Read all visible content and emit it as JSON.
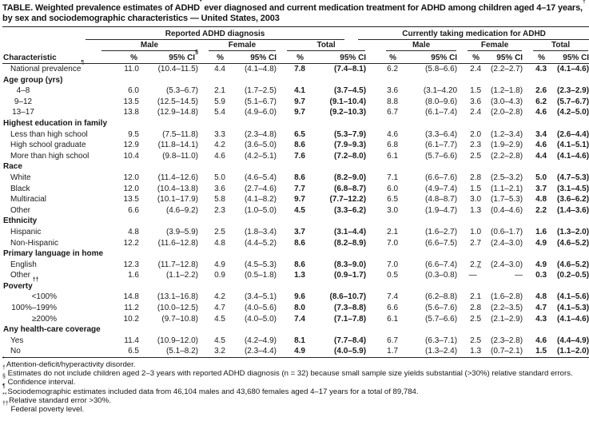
{
  "page": {
    "background": "#ffffff",
    "text_color": "#1b1b1b",
    "rule_color": "#262626"
  },
  "title": {
    "segments": [
      {
        "t": "TABLE. Weighted prevalence estimates of ADHD"
      },
      {
        "s": "*"
      },
      {
        "t": " ever diagnosed and current medication treatment for ADHD among children aged 4–17 years,"
      },
      {
        "s": "†"
      },
      {
        "t": " by sex and sociodemographic characteristics — United States, 2003"
      }
    ]
  },
  "table": {
    "group_headers": [
      {
        "label": "Reported ADHD diagnosis"
      },
      {
        "label": "Currently taking medication for ADHD"
      }
    ],
    "sex_headers": [
      "Male",
      "Female",
      "Total",
      "Male",
      "Female",
      "Total"
    ],
    "characteristic_label": "Characteristic",
    "pct_label": "%",
    "ci_label": "95% CI",
    "ci_sup": "§",
    "rows": [
      {
        "type": "data",
        "label": "National prevalence",
        "label_sup": "¶",
        "values": [
          "11.0",
          "(10.4–11.5)",
          "4.4",
          "(4.1–4.8)",
          "7.8",
          "(7.4–8.1)",
          "6.2",
          "(5.8–6.6)",
          "2.4",
          "(2.2–2.7)",
          "4.3",
          "(4.1–4.6)"
        ]
      },
      {
        "type": "section",
        "label": "Age group (yrs)"
      },
      {
        "type": "data",
        "label": "4–8",
        "label_align": "center",
        "values": [
          "6.0",
          "(5.3–6.7)",
          "2.1",
          "(1.7–2.5)",
          "4.1",
          "(3.7–4.5)",
          "3.6",
          "(3.1–4.20",
          "1.5",
          "(1.2–1.8)",
          "2.6",
          "(2.3–2.9)"
        ]
      },
      {
        "type": "data",
        "label": "9–12",
        "label_align": "center",
        "values": [
          "13.5",
          "(12.5–14.5)",
          "5.9",
          "(5.1–6.7)",
          "9.7",
          "(9.1–10.4)",
          "8.8",
          "(8.0–9.6)",
          "3.6",
          "(3.0–4.3)",
          "6.2",
          "(5.7–6.7)"
        ]
      },
      {
        "type": "data",
        "label": "13–17",
        "label_align": "center",
        "values": [
          "13.8",
          "(12.9–14.8)",
          "5.4",
          "(4.9–6.0)",
          "9.7",
          "(9.2–10.3)",
          "6.7",
          "(6.1–7.4)",
          "2.4",
          "(2.0–2.8)",
          "4.6",
          "(4.2–5.0)"
        ]
      },
      {
        "type": "section",
        "label": "Highest education in family"
      },
      {
        "type": "data",
        "label": "Less than high school",
        "values": [
          "9.5",
          "(7.5–11.8)",
          "3.3",
          "(2.3–4.8)",
          "6.5",
          "(5.3–7.9)",
          "4.6",
          "(3.3–6.4)",
          "2.0",
          "(1.2–3.4)",
          "3.4",
          "(2.6–4.4)"
        ]
      },
      {
        "type": "data",
        "label": "High school graduate",
        "values": [
          "12.9",
          "(11.8–14.1)",
          "4.2",
          "(3.6–5.0)",
          "8.6",
          "(7.9–9.3)",
          "6.8",
          "(6.1–7.7)",
          "2.3",
          "(1.9–2.9)",
          "4.6",
          "(4.1–5.1)"
        ]
      },
      {
        "type": "data",
        "label": "More than high school",
        "values": [
          "10.4",
          "(9.8–11.0)",
          "4.6",
          "(4.2–5.1)",
          "7.6",
          "(7.2–8.0)",
          "6.1",
          "(5.7–6.6)",
          "2.5",
          "(2.2–2.8)",
          "4.4",
          "(4.1–4.6)"
        ]
      },
      {
        "type": "section",
        "label": "Race"
      },
      {
        "type": "data",
        "label": "White",
        "values": [
          "12.0",
          "(11.4–12.6)",
          "5.0",
          "(4.6–5.4)",
          "8.6",
          "(8.2–9.0)",
          "7.1",
          "(6.6–7.6)",
          "2.8",
          "(2.5–3.2)",
          "5.0",
          "(4.7–5.3)"
        ]
      },
      {
        "type": "data",
        "label": "Black",
        "values": [
          "12.0",
          "(10.4–13.8)",
          "3.6",
          "(2.7–4.6)",
          "7.7",
          "(6.8–8.7)",
          "6.0",
          "(4.9–7.4)",
          "1.5",
          "(1.1–2.1)",
          "3.7",
          "(3.1–4.5)"
        ]
      },
      {
        "type": "data",
        "label": "Multiracial",
        "values": [
          "13.5",
          "(10.1–17.9)",
          "5.8",
          "(4.1–8.2)",
          "9.7",
          "(7.7–12.2)",
          "6.5",
          "(4.8–8.7)",
          "3.0",
          "(1.7–5.3)",
          "4.8",
          "(3.6–6.2)"
        ]
      },
      {
        "type": "data",
        "label": "Other",
        "values": [
          "6.6",
          "(4.6–9.2)",
          "2.3",
          "(1.0–5.0)",
          "4.5",
          "(3.3–6.2)",
          "3.0",
          "(1.9–4.7)",
          "1.3",
          "(0.4–4.6)",
          "2.2",
          "(1.4–3.6)"
        ]
      },
      {
        "type": "section",
        "label": "Ethnicity"
      },
      {
        "type": "data",
        "label": "Hispanic",
        "values": [
          "4.8",
          "(3.9–5.9)",
          "2.5",
          "(1.8–3.4)",
          "3.7",
          "(3.1–4.4)",
          "2.1",
          "(1.6–2.7)",
          "1.0",
          "(0.6–1.7)",
          "1.6",
          "(1.3–2.0)"
        ]
      },
      {
        "type": "data",
        "label": "Non-Hispanic",
        "values": [
          "12.2",
          "(11.6–12.8)",
          "4.8",
          "(4.4–5.2)",
          "8.6",
          "(8.2–8.9)",
          "7.0",
          "(6.6–7.5)",
          "2.7",
          "(2.4–3.0)",
          "4.9",
          "(4.6–5.2)"
        ]
      },
      {
        "type": "section",
        "label": "Primary language in home"
      },
      {
        "type": "data",
        "label": "English",
        "values": [
          "12.3",
          "(11.7–12.8)",
          "4.9",
          "(4.5–5.3)",
          "8.6",
          "(8.3–9.0)",
          "7.0",
          "(6.6–7.4)",
          "2.7",
          "(2.4–3.0)",
          "4.9",
          "(4.6–5.2)"
        ]
      },
      {
        "type": "data",
        "label": "Other",
        "values": [
          "1.6",
          "(1.1–2.2)",
          "0.9",
          "(0.5–1.8)",
          "1.3",
          "(0.9–1.7)",
          "0.5",
          "(0.3–0.8)",
          {
            "t": "—",
            "sup": "**"
          },
          "—",
          "0.3",
          "(0.2–0.5)"
        ]
      },
      {
        "type": "section",
        "label": "Poverty",
        "label_sup": "††"
      },
      {
        "type": "data",
        "label": "<100%",
        "label_align": "right",
        "values": [
          "14.8",
          "(13.1–16.8)",
          "4.2",
          "(3.4–5.1)",
          "9.6",
          "(8.6–10.7)",
          "7.4",
          "(6.2–8.8)",
          "2.1",
          "(1.6–2.8)",
          "4.8",
          "(4.1–5.6)"
        ]
      },
      {
        "type": "data",
        "label": "100%–199%",
        "label_align": "right",
        "values": [
          "11.2",
          "(10.0–12.5)",
          "4.7",
          "(4.0–5.6)",
          "8.0",
          "(7.3–8.8)",
          "6.6",
          "(5.6–7.6)",
          "2.8",
          "(2.2–3.5)",
          "4.7",
          "(4.1–5.3)"
        ]
      },
      {
        "type": "data",
        "label": "≥200%",
        "label_align": "right",
        "values": [
          "10.2",
          "(9.7–10.8)",
          "4.5",
          "(4.0–5.0)",
          "7.4",
          "(7.1–7.8)",
          "6.1",
          "(5.7–6.6)",
          "2.5",
          "(2.1–2.9)",
          "4.3",
          "(4.1–4.6)"
        ]
      },
      {
        "type": "section",
        "label": "Any health-care coverage"
      },
      {
        "type": "data",
        "label": "Yes",
        "values": [
          "11.4",
          "(10.9–12.0)",
          "4.5",
          "(4.2–4.9)",
          "8.1",
          "(7.7–8.4)",
          "6.7",
          "(6.3–7.1)",
          "2.5",
          "(2.3–2.8)",
          "4.6",
          "(4.4–4.9)"
        ]
      },
      {
        "type": "data",
        "label": "No",
        "values": [
          "6.5",
          "(5.1–8.2)",
          "3.2",
          "(2.3–4.4)",
          "4.9",
          "(4.0–5.9)",
          "1.7",
          "(1.3–2.4)",
          "1.3",
          "(0.7–2.1)",
          "1.5",
          "(1.1–2.0)"
        ]
      }
    ],
    "bold_value_indices": [
      4,
      5,
      10,
      11
    ]
  },
  "footnotes": [
    {
      "marker": "*",
      "text": "Attention-deficit/hyperactivity disorder."
    },
    {
      "marker": "†",
      "text": "Estimates do not include children aged 2–3 years with reported ADHD diagnosis (n = 32) because small sample size yields substantial (>30%) relative standard errors."
    },
    {
      "marker": "§",
      "text": "Confidence interval."
    },
    {
      "marker": "¶",
      "text": "Sociodemographic estimates included data from 46,104 males and 43,680 females aged 4–17 years for a total of 89,784."
    },
    {
      "marker": "**",
      "text": "Relative standard error >30%."
    },
    {
      "marker": "††",
      "text": "Federal poverty level."
    }
  ]
}
